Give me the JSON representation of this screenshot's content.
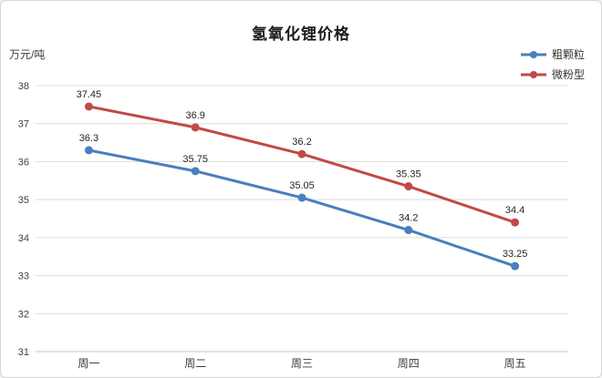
{
  "chart_data": {
    "type": "line",
    "title": "氢氧化锂价格",
    "y_unit_label": "万元/吨",
    "categories": [
      "周一",
      "周二",
      "周三",
      "周四",
      "周五"
    ],
    "series": [
      {
        "name": "粗颗粒",
        "color": "#4A7EBE",
        "values": [
          36.3,
          35.75,
          35.05,
          34.2,
          33.25
        ]
      },
      {
        "name": "微粉型",
        "color": "#C04A48",
        "values": [
          37.45,
          36.9,
          36.2,
          35.35,
          34.4
        ]
      }
    ],
    "ylim": [
      31,
      38
    ],
    "y_ticks": [
      31,
      32,
      33,
      34,
      35,
      36,
      37,
      38
    ],
    "grid": true,
    "data_labels": true,
    "legend_position": "top-right",
    "colors": {
      "gridline": "#dcdcdc",
      "axis_line": "#c8c8c8",
      "tick_text": "#404040",
      "label_text": "#262626"
    }
  }
}
